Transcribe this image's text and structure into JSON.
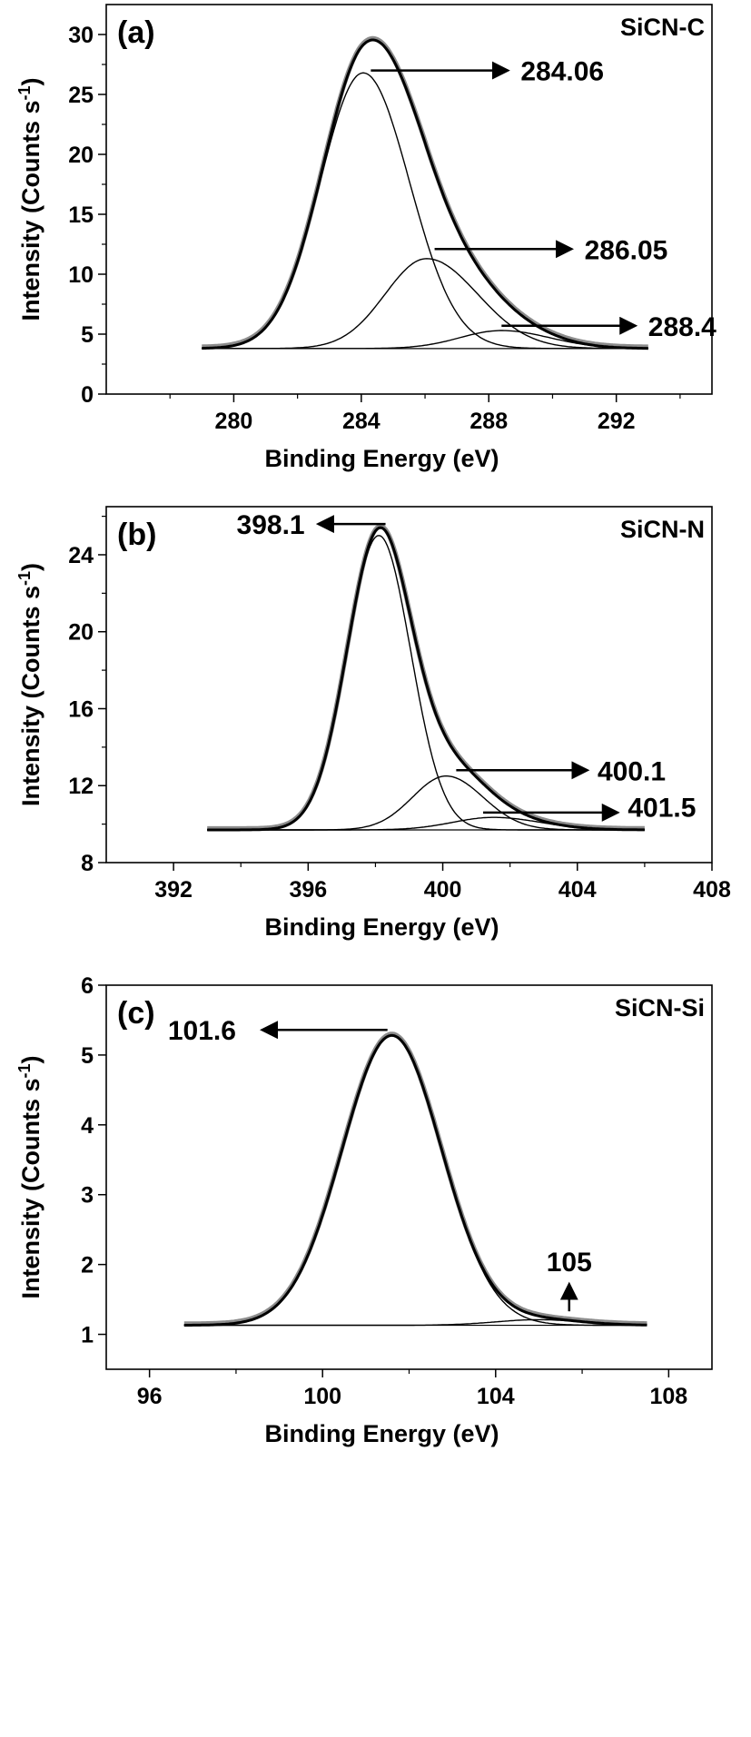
{
  "chart_data": [
    {
      "type": "line",
      "panel_label": "(a)",
      "sample_label": "SiCN-C",
      "xlabel": "Binding Energy (eV)",
      "ylabel": "Intensity (Counts s",
      "ylabel_sup": "-1",
      "ylabel_end": ")",
      "xlim": [
        276,
        295
      ],
      "ylim": [
        0,
        32.5
      ],
      "x_ticks": [
        280,
        284,
        288,
        292
      ],
      "x_minor_ticks": [
        278,
        282,
        286,
        290,
        294
      ],
      "y_ticks": [
        0,
        5,
        10,
        15,
        20,
        25,
        30
      ],
      "y_minor_ticks": [
        2.5,
        7.5,
        12.5,
        17.5,
        22.5,
        27.5
      ],
      "x_range": [
        279,
        293
      ],
      "baseline": 3.8,
      "components": [
        {
          "center": 284.06,
          "height": 23.0,
          "sigma_left": 1.35,
          "sigma_right": 1.45
        },
        {
          "center": 286.05,
          "height": 7.5,
          "sigma_left": 1.3,
          "sigma_right": 1.6
        },
        {
          "center": 288.4,
          "height": 1.5,
          "sigma_left": 1.3,
          "sigma_right": 1.5
        }
      ],
      "annotations": [
        {
          "text": "284.06",
          "arrow_from": [
            284.3,
            27.0
          ],
          "arrow_to": [
            288.6,
            27.0
          ],
          "text_at": [
            289.0,
            27.0
          ]
        },
        {
          "text": "286.05",
          "arrow_from": [
            286.3,
            12.1
          ],
          "arrow_to": [
            290.6,
            12.1
          ],
          "text_at": [
            291.0,
            12.1
          ]
        },
        {
          "text": "288.4",
          "arrow_from": [
            288.4,
            5.7
          ],
          "arrow_to": [
            292.6,
            5.7
          ],
          "text_at": [
            293.0,
            5.7
          ]
        }
      ]
    },
    {
      "type": "line",
      "panel_label": "(b)",
      "sample_label": "SiCN-N",
      "xlabel": "Binding Energy (eV)",
      "ylabel": "Intensity (Counts s",
      "ylabel_sup": "-1",
      "ylabel_end": ")",
      "xlim": [
        390,
        408
      ],
      "ylim": [
        8,
        26.5
      ],
      "x_ticks": [
        392,
        396,
        400,
        404,
        408
      ],
      "x_minor_ticks": [
        394,
        398,
        402,
        406
      ],
      "y_ticks": [
        8,
        12,
        16,
        20,
        24
      ],
      "y_minor_ticks": [
        10,
        14,
        18,
        22,
        26
      ],
      "x_range": [
        393,
        406
      ],
      "baseline": 9.7,
      "components": [
        {
          "center": 398.1,
          "height": 15.3,
          "sigma_left": 0.95,
          "sigma_right": 0.95
        },
        {
          "center": 400.1,
          "height": 2.8,
          "sigma_left": 1.0,
          "sigma_right": 1.1
        },
        {
          "center": 401.5,
          "height": 0.65,
          "sigma_left": 1.2,
          "sigma_right": 1.4
        }
      ],
      "annotations": [
        {
          "text": "398.1",
          "arrow_from": [
            398.3,
            25.6
          ],
          "arrow_to": [
            396.3,
            25.6
          ],
          "text_at": [
            395.9,
            25.6
          ],
          "anchor": "end"
        },
        {
          "text": "400.1",
          "arrow_from": [
            400.4,
            12.8
          ],
          "arrow_to": [
            404.3,
            12.8
          ],
          "text_at": [
            404.6,
            12.8
          ]
        },
        {
          "text": "401.5",
          "arrow_from": [
            401.2,
            10.6
          ],
          "arrow_to": [
            405.2,
            10.6
          ],
          "text_at": [
            405.5,
            10.9
          ]
        }
      ]
    },
    {
      "type": "line",
      "panel_label": "(c)",
      "sample_label": "SiCN-Si",
      "xlabel": "Binding Energy (eV)",
      "ylabel": "Intensity (Counts s",
      "ylabel_sup": "-1",
      "ylabel_end": ")",
      "xlim": [
        95,
        109
      ],
      "ylim": [
        0.5,
        6
      ],
      "x_ticks": [
        96,
        100,
        104,
        108
      ],
      "x_minor_ticks": [
        98,
        102,
        106
      ],
      "y_ticks": [
        1,
        2,
        3,
        4,
        5,
        6
      ],
      "y_minor_ticks": [],
      "x_range": [
        96.8,
        107.5
      ],
      "baseline": 1.13,
      "components": [
        {
          "center": 101.6,
          "height": 4.15,
          "sigma_left": 1.15,
          "sigma_right": 1.15
        },
        {
          "center": 105.0,
          "height": 0.08,
          "sigma_left": 1.0,
          "sigma_right": 1.0
        }
      ],
      "annotations": [
        {
          "text": "101.6",
          "arrow_from": [
            101.5,
            5.36
          ],
          "arrow_to": [
            98.6,
            5.36
          ],
          "text_at": [
            98.0,
            5.36
          ],
          "anchor": "end"
        },
        {
          "text": "105",
          "arrow_from": [
            105.7,
            1.33
          ],
          "arrow_to": [
            105.7,
            1.72
          ],
          "text_at": [
            105.7,
            2.05
          ],
          "anchor": "middle"
        }
      ]
    }
  ]
}
